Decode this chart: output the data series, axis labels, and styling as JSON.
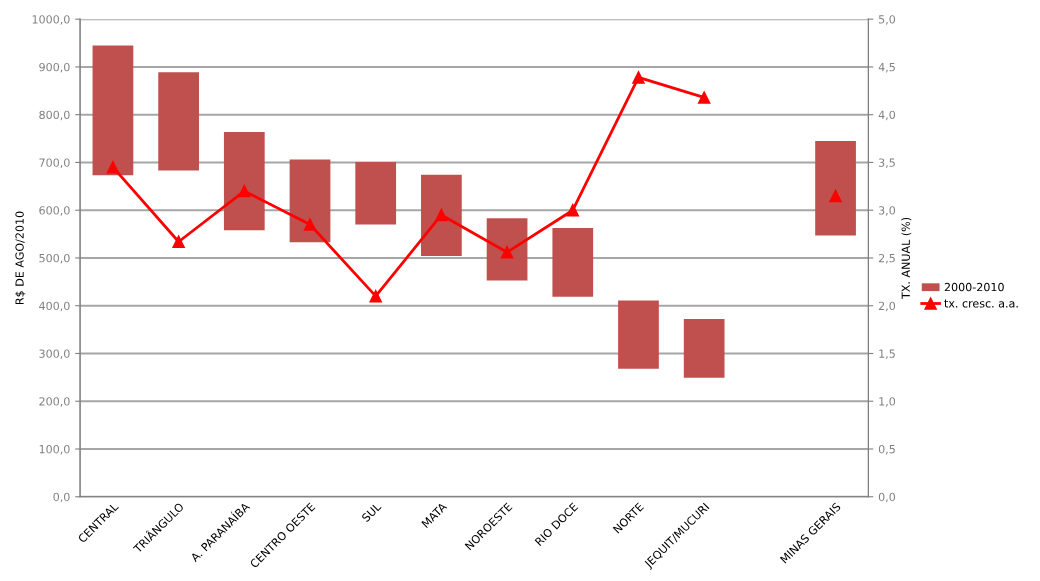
{
  "chart_data": {
    "type": "bar",
    "categories": [
      "CENTRAL",
      "TRIÂNGULO",
      "A. PARANAÍBA",
      "CENTRO OESTE",
      "SUL",
      "MATA",
      "NOROESTE",
      "RIO DOCE",
      "NORTE",
      "JEQUIT/MUCURI",
      null,
      "MINAS GERAIS"
    ],
    "series": [
      {
        "name": "2000-2010",
        "color": "#c0504d",
        "base": [
          673,
          683,
          558,
          533,
          570,
          504,
          453,
          419,
          268,
          249,
          null,
          547
        ],
        "values": [
          272,
          206,
          206,
          173,
          131,
          170,
          130,
          144,
          143,
          123,
          null,
          198
        ]
      },
      {
        "name": "tx. cresc. a.a.",
        "type": "line",
        "axis": "y2",
        "color": "#ff0000",
        "marker": "triangle",
        "line_style": "solid",
        "values": [
          3.45,
          2.67,
          3.2,
          2.85,
          2.1,
          2.95,
          2.56,
          3.0,
          4.39,
          4.18,
          null,
          3.15
        ]
      }
    ],
    "ylabel": "R$ DE AGO/2010",
    "y2label": "TX. ANUAL (%)",
    "ylim": [
      0,
      1000
    ],
    "yticks": [
      {
        "value": 0,
        "label": "0,0"
      },
      {
        "value": 100,
        "label": "100,0"
      },
      {
        "value": 200,
        "label": "200,0"
      },
      {
        "value": 300,
        "label": "300,0"
      },
      {
        "value": 400,
        "label": "400,0"
      },
      {
        "value": 500,
        "label": "500,0"
      },
      {
        "value": 600,
        "label": "600,0"
      },
      {
        "value": 700,
        "label": "700,0"
      },
      {
        "value": 800,
        "label": "800,0"
      },
      {
        "value": 900,
        "label": "900,0"
      },
      {
        "value": 1000,
        "label": "1000,0"
      }
    ],
    "y2lim": [
      0,
      5
    ],
    "y2ticks": [
      {
        "value": 0,
        "label": "0,0"
      },
      {
        "value": 0.5,
        "label": "0,5"
      },
      {
        "value": 1,
        "label": "1,0"
      },
      {
        "value": 1.5,
        "label": "1,5"
      },
      {
        "value": 2,
        "label": "2,0"
      },
      {
        "value": 2.5,
        "label": "2,5"
      },
      {
        "value": 3,
        "label": "3,0"
      },
      {
        "value": 3.5,
        "label": "3,5"
      },
      {
        "value": 4,
        "label": "4,0"
      },
      {
        "value": 4.5,
        "label": "4,5"
      },
      {
        "value": 5,
        "label": "5,0"
      }
    ],
    "grid": "y",
    "legend": "right"
  }
}
